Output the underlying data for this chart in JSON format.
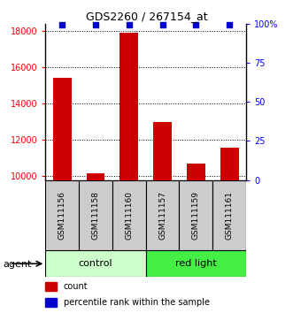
{
  "title": "GDS2260 / 267154_at",
  "samples": [
    "GSM111156",
    "GSM111158",
    "GSM111160",
    "GSM111157",
    "GSM111159",
    "GSM111161"
  ],
  "counts": [
    15400,
    10150,
    17900,
    13000,
    10700,
    11600
  ],
  "percentile_ranks": [
    99,
    99,
    99,
    99,
    99,
    99
  ],
  "ylim_left": [
    9800,
    18400
  ],
  "ylim_right": [
    0,
    100
  ],
  "yticks_left": [
    10000,
    12000,
    14000,
    16000,
    18000
  ],
  "yticks_right": [
    0,
    25,
    50,
    75,
    100
  ],
  "bar_color": "#cc0000",
  "dot_color": "#0000cc",
  "bar_width": 0.55,
  "agent_label": "agent",
  "legend_count_label": "count",
  "legend_pct_label": "percentile rank within the sample",
  "background_color": "#ffffff",
  "control_color": "#ccffcc",
  "redlight_color": "#44ee44",
  "sample_box_color": "#cccccc",
  "title_fontsize": 9,
  "tick_fontsize": 7,
  "sample_fontsize": 6.5,
  "group_fontsize": 8,
  "legend_fontsize": 7
}
